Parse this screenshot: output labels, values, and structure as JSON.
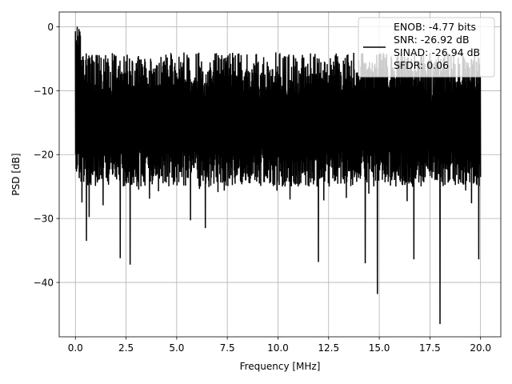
{
  "chart_data": {
    "type": "line",
    "title": "",
    "xlabel": "Frequency [MHz]",
    "ylabel": "PSD [dB]",
    "xlim": [
      -0.8,
      21.0
    ],
    "ylim": [
      -48.5,
      2.3
    ],
    "grid": true,
    "x_ticks": [
      0.0,
      2.5,
      5.0,
      7.5,
      10.0,
      12.5,
      15.0,
      17.5,
      20.0
    ],
    "x_tick_labels": [
      "0.0",
      "2.5",
      "5.0",
      "7.5",
      "10.0",
      "12.5",
      "15.0",
      "17.5",
      "20.0"
    ],
    "y_ticks": [
      0,
      -10,
      -20,
      -30,
      -40
    ],
    "y_tick_labels": [
      "0",
      "−10",
      "−20",
      "−30",
      "−40"
    ],
    "legend_position": "top-right",
    "series": [
      {
        "name": "",
        "color": "#000000",
        "x_range": [
          0.0,
          20.0
        ],
        "noise_floor_mean": -14,
        "upper_envelope": -6,
        "lower_envelope": -25,
        "peak": {
          "x": 0.1,
          "y": 0.0
        },
        "notable_dips": [
          {
            "x": 0.55,
            "y": -33.5
          },
          {
            "x": 2.2,
            "y": -36.2
          },
          {
            "x": 2.7,
            "y": -37.2
          },
          {
            "x": 6.4,
            "y": -31.5
          },
          {
            "x": 12.0,
            "y": -36.8
          },
          {
            "x": 14.3,
            "y": -37.0
          },
          {
            "x": 14.9,
            "y": -41.8
          },
          {
            "x": 16.7,
            "y": -36.4
          },
          {
            "x": 18.0,
            "y": -46.5
          },
          {
            "x": 19.9,
            "y": -36.4
          }
        ]
      }
    ],
    "legend_lines": [
      "ENOB: -4.77 bits",
      "SNR: -26.92 dB",
      "SINAD: -26.94 dB",
      "SFDR: 0.06"
    ]
  }
}
